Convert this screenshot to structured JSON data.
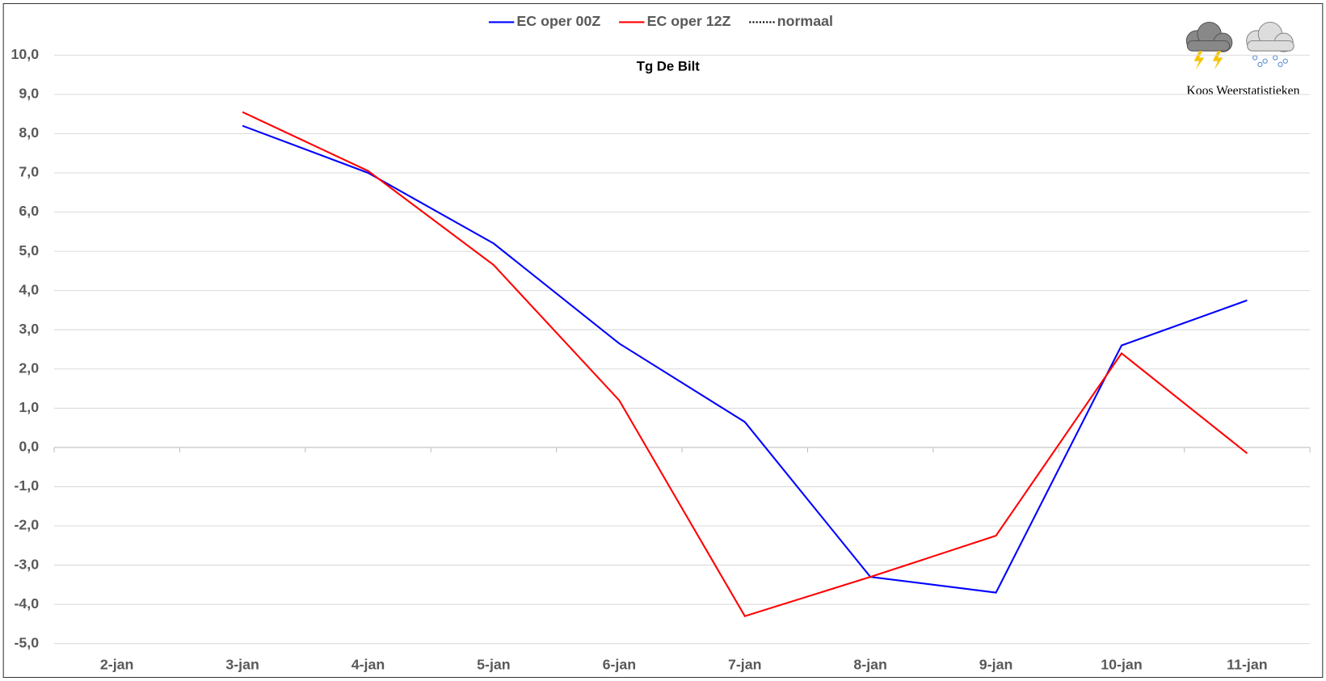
{
  "chart_data": {
    "type": "line",
    "title": "Tg De Bilt",
    "watermark": "Koos Weerstatistieken",
    "categories": [
      "2-jan",
      "3-jan",
      "4-jan",
      "5-jan",
      "6-jan",
      "7-jan",
      "8-jan",
      "9-jan",
      "10-jan",
      "11-jan"
    ],
    "series": [
      {
        "name": "EC oper 00Z",
        "color": "#0000ff",
        "values": [
          null,
          8.2,
          7.0,
          5.2,
          2.65,
          0.65,
          -3.3,
          -3.7,
          2.6,
          3.75
        ]
      },
      {
        "name": "EC oper 12Z",
        "color": "#ff0000",
        "values": [
          null,
          8.55,
          7.05,
          4.65,
          1.2,
          -4.3,
          -3.3,
          -2.25,
          2.4,
          -0.15
        ]
      },
      {
        "name": "normaal",
        "color": "#000000",
        "dash": "dotted",
        "values": [
          null,
          null,
          null,
          null,
          null,
          null,
          null,
          null,
          null,
          null
        ]
      }
    ],
    "ylim": [
      -5,
      10
    ],
    "yticks": [
      {
        "value": -5,
        "label": "-5,0"
      },
      {
        "value": -4,
        "label": "-4,0"
      },
      {
        "value": -3,
        "label": "-3,0"
      },
      {
        "value": -2,
        "label": "-2,0"
      },
      {
        "value": -1,
        "label": "-1,0"
      },
      {
        "value": 0,
        "label": "0,0"
      },
      {
        "value": 1,
        "label": "1,0"
      },
      {
        "value": 2,
        "label": "2,0"
      },
      {
        "value": 3,
        "label": "3,0"
      },
      {
        "value": 4,
        "label": "4,0"
      },
      {
        "value": 5,
        "label": "5,0"
      },
      {
        "value": 6,
        "label": "6,0"
      },
      {
        "value": 7,
        "label": "7,0"
      },
      {
        "value": 8,
        "label": "8,0"
      },
      {
        "value": 9,
        "label": "9,0"
      },
      {
        "value": 10,
        "label": "10,0"
      }
    ],
    "grid": true,
    "legend": "top"
  }
}
